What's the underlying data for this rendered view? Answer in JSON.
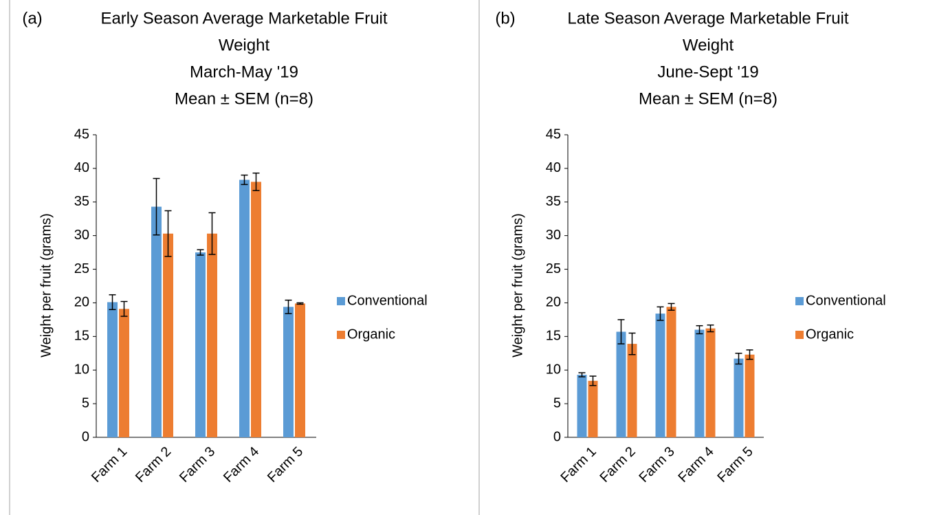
{
  "chart_data": [
    {
      "type": "bar",
      "panel": "(a)",
      "title": [
        "Early Season Average Marketable Fruit",
        "Weight",
        "March-May '19",
        "Mean ±  SEM (n=8)"
      ],
      "y_label": "Weight per fruit (grams)",
      "categories": [
        "Farm 1",
        "Farm 2",
        "Farm 3",
        "Farm 4",
        "Farm 5"
      ],
      "series": [
        {
          "name": "Conventional",
          "color": "#5b9bd5",
          "values": [
            20.1,
            34.3,
            27.5,
            38.3,
            19.4
          ],
          "errors": [
            1.1,
            4.2,
            0.4,
            0.7,
            1.0
          ]
        },
        {
          "name": "Organic",
          "color": "#ed7d31",
          "values": [
            19.1,
            30.3,
            30.3,
            38.0,
            19.9
          ],
          "errors": [
            1.1,
            3.4,
            3.1,
            1.3,
            0.1
          ]
        }
      ],
      "ylim": [
        0,
        45
      ],
      "yticks": [
        0,
        5,
        10,
        15,
        20,
        25,
        30,
        35,
        40,
        45
      ],
      "legend": "right"
    },
    {
      "type": "bar",
      "panel": "(b)",
      "title": [
        "Late Season Average Marketable Fruit",
        "Weight",
        "June-Sept '19",
        "Mean ±  SEM (n=8)"
      ],
      "y_label": "Weight per fruit (grams)",
      "categories": [
        "Farm 1",
        "Farm 2",
        "Farm 3",
        "Farm 4",
        "Farm 5"
      ],
      "series": [
        {
          "name": "Conventional",
          "color": "#5b9bd5",
          "values": [
            9.3,
            15.7,
            18.4,
            16.0,
            11.7
          ],
          "errors": [
            0.3,
            1.8,
            1.0,
            0.6,
            0.8
          ]
        },
        {
          "name": "Organic",
          "color": "#ed7d31",
          "values": [
            8.4,
            13.9,
            19.4,
            16.2,
            12.3
          ],
          "errors": [
            0.7,
            1.6,
            0.5,
            0.5,
            0.7
          ]
        }
      ],
      "ylim": [
        0,
        45
      ],
      "yticks": [
        0,
        5,
        10,
        15,
        20,
        25,
        30,
        35,
        40,
        45
      ],
      "legend": "right"
    }
  ]
}
